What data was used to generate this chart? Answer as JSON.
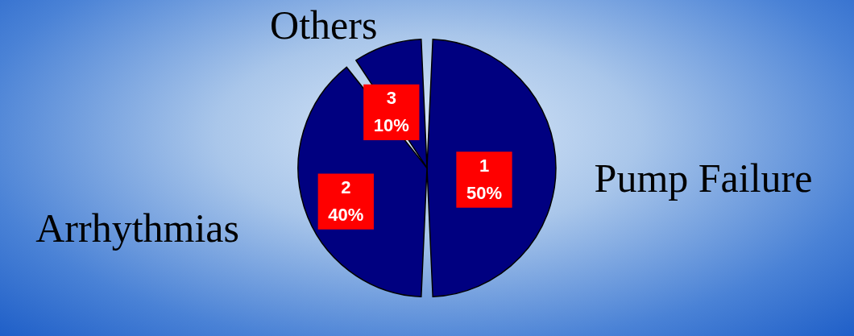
{
  "chart_data": {
    "type": "pie",
    "categories": [
      "Pump Failure",
      "Arrhythmias",
      "Others"
    ],
    "values": [
      50,
      40,
      10
    ],
    "colors": [
      "#000080",
      "#000080",
      "#000080"
    ],
    "value_labels": [
      "1\n50%",
      "2\n40%",
      "3\n10%"
    ]
  }
}
